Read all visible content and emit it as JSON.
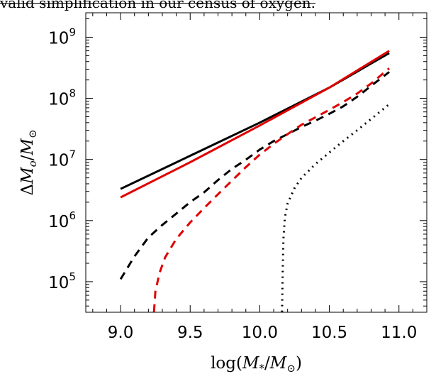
{
  "header_text": "valid simplification in our census of oxygen.",
  "chart_data": {
    "type": "line",
    "xlabel": "log(M*/M⊙)",
    "ylabel": "ΔMo/M⊙",
    "xlim": [
      8.75,
      11.2
    ],
    "ylim_log10": [
      4.5,
      9.4
    ],
    "y_scale": "log",
    "grid": false,
    "x_ticks": [
      "9.0",
      "9.5",
      "10.0",
      "10.5",
      "11.0"
    ],
    "y_ticks": [
      {
        "base": "10",
        "exp": "5"
      },
      {
        "base": "10",
        "exp": "6"
      },
      {
        "base": "10",
        "exp": "7"
      },
      {
        "base": "10",
        "exp": "8"
      },
      {
        "base": "10",
        "exp": "9"
      }
    ],
    "series": [
      {
        "color": "#000000",
        "style": "solid",
        "x": [
          9.0,
          9.5,
          10.0,
          10.5,
          10.93
        ],
        "y": [
          3300000.0,
          11500000.0,
          40000000.0,
          150000000.0,
          550000000.0
        ]
      },
      {
        "color": "#e00000",
        "style": "solid",
        "x": [
          9.0,
          9.5,
          10.0,
          10.5,
          10.93
        ],
        "y": [
          2400000.0,
          9000000.0,
          36000000.0,
          150000000.0,
          600000000.0
        ]
      },
      {
        "color": "#000000",
        "style": "dashed",
        "x": [
          9.0,
          9.1,
          9.2,
          9.3,
          9.4,
          9.5,
          9.6,
          9.7,
          9.8,
          9.9,
          10.0,
          10.1,
          10.2,
          10.3,
          10.4,
          10.5,
          10.6,
          10.7,
          10.8,
          10.93
        ],
        "y": [
          110000.0,
          260000.0,
          530000.0,
          850000.0,
          1300000.0,
          2000000.0,
          2900000.0,
          4600000.0,
          7000000.0,
          9900000.0,
          14500000.0,
          20000000.0,
          26000000.0,
          34000000.0,
          43000000.0,
          56000000.0,
          74000000.0,
          106000000.0,
          160000000.0,
          270000000.0
        ]
      },
      {
        "color": "#e00000",
        "style": "dashed",
        "x": [
          9.24,
          9.25,
          9.28,
          9.32,
          9.4,
          9.5,
          9.6,
          9.7,
          9.8,
          9.9,
          10.0,
          10.1,
          10.2,
          10.3,
          10.4,
          10.5,
          10.6,
          10.7,
          10.8,
          10.93
        ],
        "y": [
          32000.0,
          70000.0,
          140000.0,
          250000.0,
          500000.0,
          930000.0,
          1600000.0,
          2700000.0,
          4500000.0,
          7500000.0,
          12000000.0,
          18000000.0,
          26000000.0,
          37000000.0,
          49000000.0,
          65000000.0,
          87000000.0,
          120000000.0,
          175000000.0,
          310000000.0
        ]
      },
      {
        "color": "#000000",
        "style": "dotted",
        "x": [
          10.16,
          10.165,
          10.17,
          10.18,
          10.2,
          10.25,
          10.3,
          10.4,
          10.5,
          10.6,
          10.7,
          10.8,
          10.93
        ],
        "y": [
          32000.0,
          150000.0,
          500000.0,
          1100000.0,
          1900000.0,
          3400000.0,
          5000000.0,
          8400000.0,
          13000000.0,
          20000000.0,
          30000000.0,
          46000000.0,
          80000000.0
        ]
      }
    ]
  }
}
